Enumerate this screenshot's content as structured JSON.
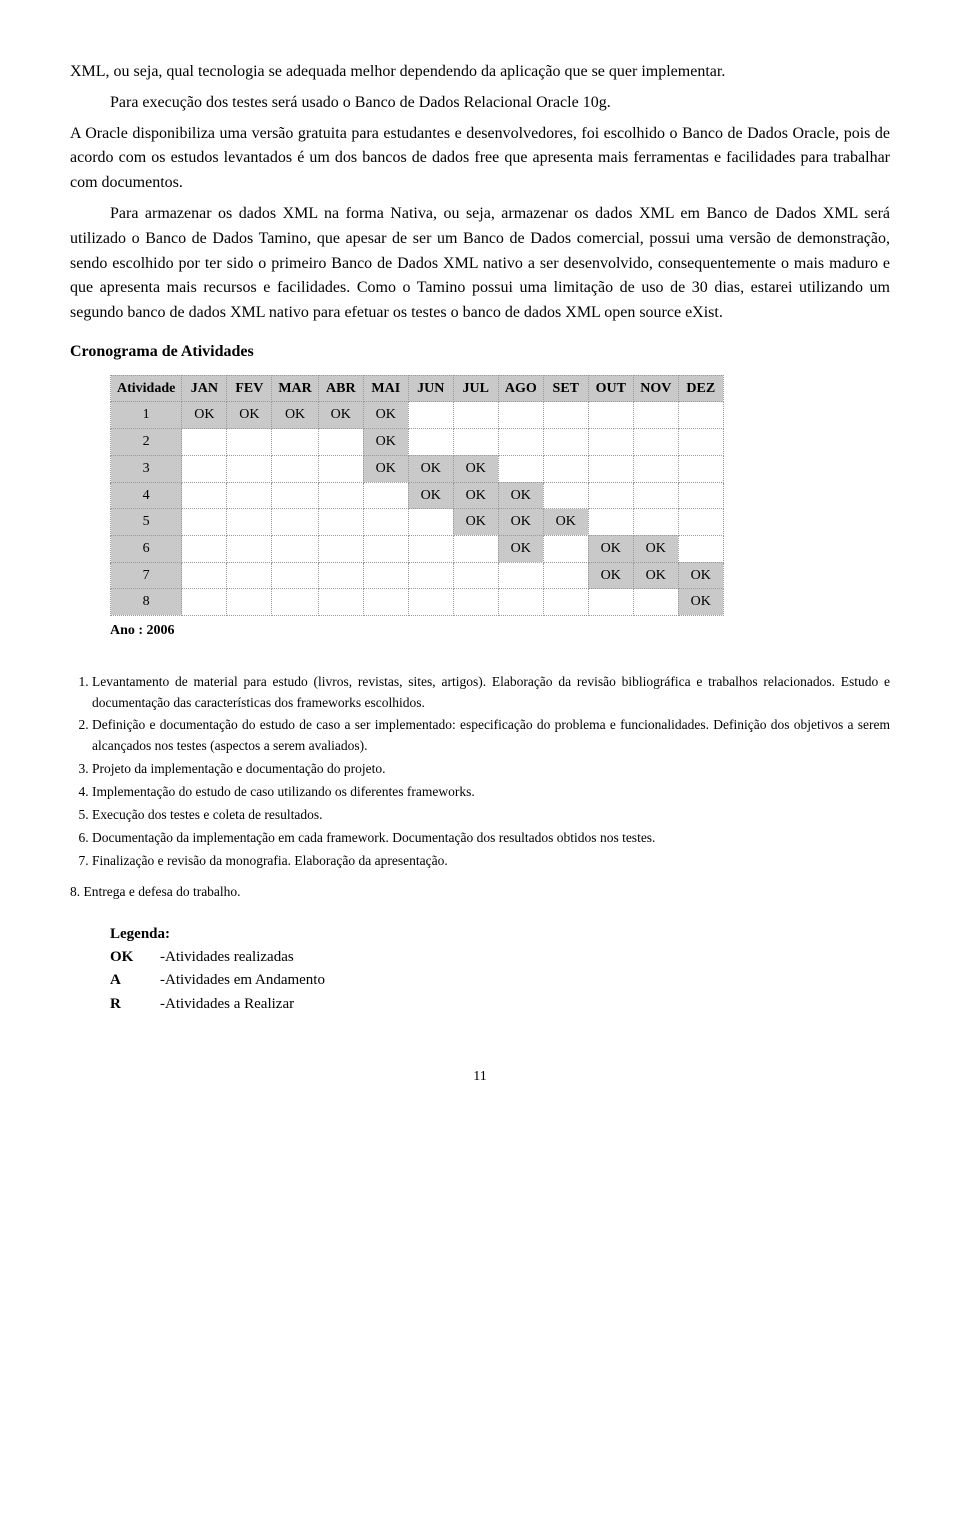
{
  "paragraphs": {
    "p1": "XML, ou seja, qual tecnologia se adequada melhor dependendo da aplicação que se quer implementar.",
    "p2_indent": "Para execução dos testes será usado o Banco de Dados Relacional Oracle 10g.",
    "p3": "A Oracle disponibiliza uma versão gratuita para estudantes e desenvolvedores, foi escolhido o Banco de Dados Oracle, pois de acordo com os estudos levantados é um dos bancos de dados free que apresenta mais ferramentas e facilidades para trabalhar com documentos.",
    "p4": "Para armazenar os dados XML na forma Nativa, ou seja, armazenar os dados XML em Banco de Dados XML será utilizado o Banco de Dados Tamino, que apesar de ser um Banco de Dados comercial, possui uma versão de demonstração, sendo escolhido por ter sido o primeiro Banco de Dados XML nativo a ser desenvolvido, consequentemente o mais maduro e que apresenta mais recursos e facilidades. Como o Tamino possui uma limitação de uso de 30 dias, estarei utilizando um segundo banco de dados XML nativo para efetuar os testes o banco de dados XML open source eXist."
  },
  "cronograma": {
    "heading": "Cronograma de Atividades",
    "col_activity": "Atividade",
    "months": [
      "JAN",
      "FEV",
      "MAR",
      "ABR",
      "MAI",
      "JUN",
      "JUL",
      "AGO",
      "SET",
      "OUT",
      "NOV",
      "DEZ"
    ],
    "ok_label": "OK",
    "rows": [
      {
        "id": "1",
        "ok": [
          0,
          1,
          2,
          3,
          4
        ]
      },
      {
        "id": "2",
        "ok": [
          4
        ]
      },
      {
        "id": "3",
        "ok": [
          4,
          5,
          6
        ]
      },
      {
        "id": "4",
        "ok": [
          5,
          6,
          7
        ]
      },
      {
        "id": "5",
        "ok": [
          6,
          7,
          8
        ]
      },
      {
        "id": "6",
        "ok": [
          7,
          9,
          10
        ]
      },
      {
        "id": "7",
        "ok": [
          9,
          10,
          11
        ]
      },
      {
        "id": "8",
        "ok": [
          11
        ]
      }
    ],
    "ano_label": "Ano : 2006",
    "colors": {
      "header_bg": "#c9c9c9",
      "ok_bg": "#c9c9c9",
      "border": "#999999"
    }
  },
  "activities_list": [
    "Levantamento de material para estudo (livros, revistas, sites, artigos). Elaboração da revisão bibliográfica e trabalhos relacionados. Estudo e documentação das características dos frameworks escolhidos.",
    "Definição e documentação do estudo de caso a ser implementado: especificação do problema e funcionalidades. Definição dos objetivos a serem alcançados nos testes (aspectos a serem avaliados).",
    "Projeto da implementação e documentação do projeto.",
    "Implementação do estudo de caso utilizando os diferentes frameworks.",
    "Execução dos testes e coleta de resultados.",
    "Documentação da implementação em cada framework. Documentação dos resultados obtidos nos testes.",
    "Finalização e revisão da monografia. Elaboração da apresentação."
  ],
  "item8": "8. Entrega e defesa do trabalho.",
  "legenda": {
    "title": "Legenda:",
    "rows": [
      {
        "key": "OK",
        "desc": "-Atividades realizadas"
      },
      {
        "key": "A",
        "desc": "-Atividades em Andamento"
      },
      {
        "key": "R",
        "desc": "-Atividades a Realizar"
      }
    ]
  },
  "page_number": "11"
}
